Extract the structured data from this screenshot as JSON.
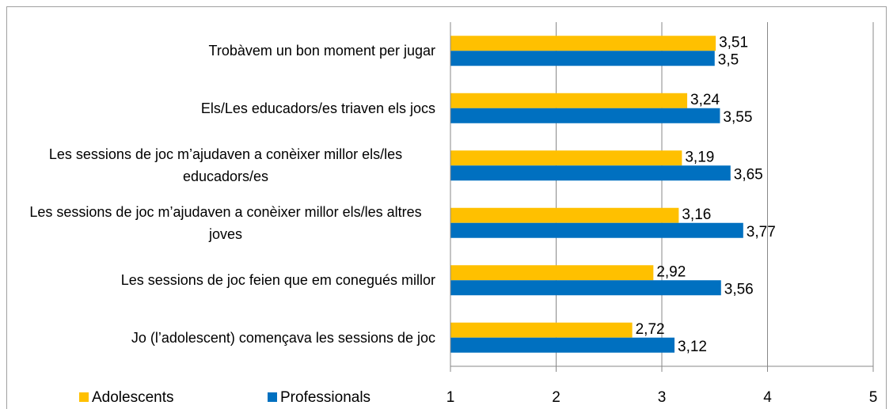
{
  "chart_data": {
    "type": "bar",
    "orientation": "horizontal",
    "categories": [
      "Trobàvem un bon moment per jugar",
      "Els/Les educadors/es triaven els jocs",
      "Les sessions de joc m’ajudaven a conèixer millor els/les educadors/es",
      "Les sessions de joc m’ajudaven a conèixer millor els/les altres joves",
      "Les sessions de joc feien que em conegués millor",
      "Jo (l’adolescent) començava les sessions de joc"
    ],
    "series": [
      {
        "name": "Adolescents",
        "color": "#FFC000",
        "values": [
          3.51,
          3.24,
          3.19,
          3.16,
          2.92,
          2.72
        ],
        "value_labels": [
          "3,51",
          "3,24",
          "3,19",
          "3,16",
          "2,92",
          "2,72"
        ]
      },
      {
        "name": "Professionals",
        "color": "#0070C0",
        "values": [
          3.5,
          3.55,
          3.65,
          3.77,
          3.56,
          3.12
        ],
        "value_labels": [
          "3,5",
          "3,55",
          "3,65",
          "3,77",
          "3,56",
          "3,12"
        ]
      }
    ],
    "xlim": [
      1,
      5
    ],
    "xticks": [
      1,
      2,
      3,
      4,
      5
    ],
    "grid": true,
    "legend": "bottom"
  }
}
